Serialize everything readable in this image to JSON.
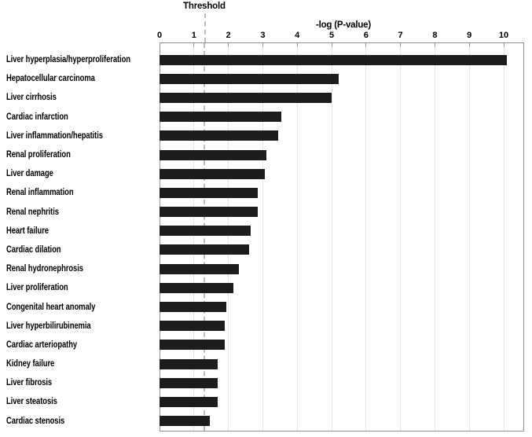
{
  "chart_data": {
    "type": "bar",
    "orientation": "horizontal",
    "title": "",
    "xlabel": "-log  (P-value)",
    "ylabel": "",
    "xlim": [
      0,
      10.6
    ],
    "x_ticks": [
      0,
      1,
      2,
      3,
      4,
      5,
      6,
      7,
      8,
      9,
      10
    ],
    "grid": true,
    "gridline_style": "vertical-dotted",
    "legend": "none",
    "threshold": {
      "label": "Threshold",
      "value": 1.3
    },
    "categories": [
      "Liver hyperplasia/hyperproliferation",
      "Hepatocellular carcinoma",
      "Liver cirrhosis",
      "Cardiac infarction",
      "Liver inflammation/hepatitis",
      "Renal proliferation",
      "Liver damage",
      "Renal inflammation",
      "Renal nephritis",
      "Heart failure",
      "Cardiac dilation",
      "Renal hydronephrosis",
      "Liver proliferation",
      "Congenital heart anomaly",
      "Liver hyperbilirubinemia",
      "Cardiac arteriopathy",
      "Kidney failure",
      "Liver fibrosis",
      "Liver steatosis",
      "Cardiac stenosis"
    ],
    "values": [
      10.1,
      5.2,
      5.0,
      3.55,
      3.45,
      3.1,
      3.05,
      2.85,
      2.85,
      2.65,
      2.6,
      2.3,
      2.15,
      1.95,
      1.9,
      1.9,
      1.7,
      1.7,
      1.7,
      1.45
    ]
  },
  "colors": {
    "bar": "#1c1c1c",
    "axis_border": "#8f8f8f",
    "gridline": "#c9c9c9",
    "threshold_line": "#bcbcbc",
    "text": "#000000",
    "background": "#ffffff"
  }
}
